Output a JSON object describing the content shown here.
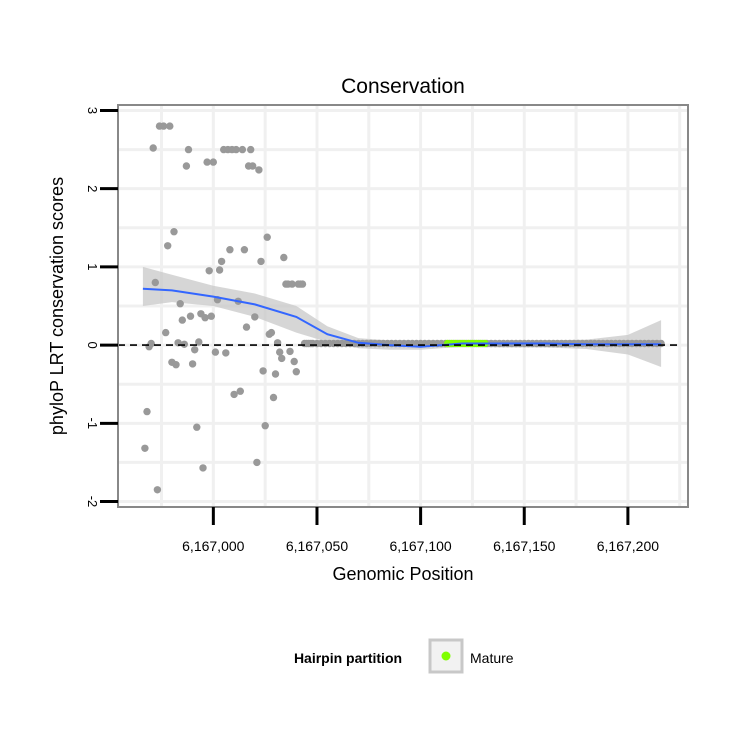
{
  "chart_data": {
    "type": "scatter",
    "title": "Conservation",
    "xlabel": "Genomic Position",
    "ylabel": "phyloP LRT conservation scores",
    "xlim": [
      6166954,
      6167229
    ],
    "ylim": [
      -2.07,
      3.07
    ],
    "x_ticks": [
      6167000,
      6167050,
      6167100,
      6167150,
      6167200
    ],
    "x_tick_labels": [
      "6,167,000",
      "6,167,050",
      "6,167,100",
      "6,167,150",
      "6,167,200"
    ],
    "y_ticks": [
      -2,
      -1,
      0,
      1,
      2,
      3
    ],
    "y_tick_labels": [
      "-2",
      "-1",
      "0",
      "1",
      "2",
      "3"
    ],
    "reference_line": {
      "y": 0,
      "style": "dashed"
    },
    "colors": {
      "points": "#999999",
      "smooth": "#3366ff",
      "ribbon": "#c8c8c8",
      "mature": "#7fff00",
      "panel_border": "#888888",
      "grid": "#f0f0f0"
    },
    "legend": {
      "title": "Hairpin partition",
      "position": "bottom",
      "entries": [
        {
          "label": "Mature",
          "color": "#7fff00"
        }
      ]
    },
    "points": [
      [
        6166967,
        -1.32
      ],
      [
        6166968,
        -0.85
      ],
      [
        6166969,
        -0.02
      ],
      [
        6166970,
        0.02
      ],
      [
        6166971,
        2.52
      ],
      [
        6166972,
        0.8
      ],
      [
        6166973,
        -1.85
      ],
      [
        6166974,
        2.8
      ],
      [
        6166976,
        2.8
      ],
      [
        6166977,
        0.16
      ],
      [
        6166978,
        1.27
      ],
      [
        6166979,
        2.8
      ],
      [
        6166980,
        -0.22
      ],
      [
        6166981,
        1.45
      ],
      [
        6166982,
        -0.25
      ],
      [
        6166983,
        0.03
      ],
      [
        6166984,
        0.53
      ],
      [
        6166985,
        0.32
      ],
      [
        6166986,
        0.01
      ],
      [
        6166987,
        2.29
      ],
      [
        6166988,
        2.5
      ],
      [
        6166989,
        0.37
      ],
      [
        6166990,
        -0.24
      ],
      [
        6166991,
        -0.06
      ],
      [
        6166992,
        -1.05
      ],
      [
        6166993,
        0.04
      ],
      [
        6166994,
        0.4
      ],
      [
        6166995,
        -1.57
      ],
      [
        6166996,
        0.35
      ],
      [
        6166997,
        2.34
      ],
      [
        6166998,
        0.95
      ],
      [
        6166999,
        0.37
      ],
      [
        6167000,
        2.34
      ],
      [
        6167001,
        -0.09
      ],
      [
        6167002,
        0.58
      ],
      [
        6167003,
        0.96
      ],
      [
        6167004,
        1.07
      ],
      [
        6167005,
        2.5
      ],
      [
        6167006,
        -0.1
      ],
      [
        6167007,
        2.5
      ],
      [
        6167008,
        1.22
      ],
      [
        6167009,
        2.5
      ],
      [
        6167010,
        -0.63
      ],
      [
        6167011,
        2.5
      ],
      [
        6167012,
        0.56
      ],
      [
        6167013,
        -0.59
      ],
      [
        6167014,
        2.5
      ],
      [
        6167015,
        1.22
      ],
      [
        6167016,
        0.23
      ],
      [
        6167017,
        2.29
      ],
      [
        6167018,
        2.5
      ],
      [
        6167019,
        2.29
      ],
      [
        6167020,
        0.36
      ],
      [
        6167021,
        -1.5
      ],
      [
        6167022,
        2.24
      ],
      [
        6167023,
        1.07
      ],
      [
        6167024,
        -0.33
      ],
      [
        6167025,
        -1.03
      ],
      [
        6167026,
        1.38
      ],
      [
        6167027,
        0.14
      ],
      [
        6167028,
        0.16
      ],
      [
        6167029,
        -0.67
      ],
      [
        6167030,
        -0.37
      ],
      [
        6167031,
        0.03
      ],
      [
        6167032,
        -0.09
      ],
      [
        6167033,
        -0.17
      ],
      [
        6167034,
        1.12
      ],
      [
        6167035,
        0.78
      ],
      [
        6167036,
        0.78
      ],
      [
        6167037,
        -0.08
      ],
      [
        6167038,
        0.78
      ],
      [
        6167039,
        -0.21
      ],
      [
        6167040,
        -0.34
      ],
      [
        6167041,
        0.78
      ],
      [
        6167042,
        0.78
      ],
      [
        6167043,
        0.78
      ],
      [
        6167044,
        0.02
      ],
      [
        6167045,
        0.02
      ],
      [
        6167046,
        0.02
      ],
      [
        6167047,
        0.02
      ],
      [
        6167048,
        0.02
      ],
      [
        6167050,
        0.02
      ],
      [
        6167052,
        0.02
      ],
      [
        6167054,
        0.02
      ],
      [
        6167056,
        0.02
      ],
      [
        6167058,
        0.02
      ],
      [
        6167060,
        0.02
      ],
      [
        6167062,
        0.02
      ],
      [
        6167064,
        0.02
      ],
      [
        6167066,
        0.02
      ],
      [
        6167068,
        0.02
      ],
      [
        6167070,
        0.02
      ],
      [
        6167072,
        0.02
      ],
      [
        6167074,
        0.02
      ],
      [
        6167076,
        0.02
      ],
      [
        6167078,
        0.02
      ],
      [
        6167080,
        0.02
      ],
      [
        6167082,
        0.02
      ],
      [
        6167084,
        0.02
      ],
      [
        6167086,
        0.02
      ],
      [
        6167088,
        0.02
      ],
      [
        6167090,
        0.02
      ],
      [
        6167092,
        0.02
      ],
      [
        6167094,
        0.02
      ],
      [
        6167096,
        0.02
      ],
      [
        6167098,
        0.02
      ],
      [
        6167100,
        0.02
      ],
      [
        6167102,
        0.02
      ],
      [
        6167104,
        0.02
      ],
      [
        6167106,
        0.02
      ],
      [
        6167108,
        0.02
      ],
      [
        6167110,
        0.02
      ],
      [
        6167112,
        0.02
      ],
      [
        6167114,
        0.02
      ],
      [
        6167116,
        0.02
      ],
      [
        6167118,
        0.02
      ],
      [
        6167120,
        0.02
      ],
      [
        6167122,
        0.02
      ],
      [
        6167124,
        0.02
      ],
      [
        6167126,
        0.02
      ],
      [
        6167128,
        0.02
      ],
      [
        6167130,
        0.02
      ],
      [
        6167132,
        0.02
      ],
      [
        6167134,
        0.02
      ],
      [
        6167136,
        0.02
      ],
      [
        6167138,
        0.02
      ],
      [
        6167140,
        0.02
      ],
      [
        6167142,
        0.02
      ],
      [
        6167144,
        0.02
      ],
      [
        6167146,
        0.02
      ],
      [
        6167148,
        0.02
      ],
      [
        6167150,
        0.02
      ],
      [
        6167152,
        0.02
      ],
      [
        6167154,
        0.02
      ],
      [
        6167156,
        0.02
      ],
      [
        6167158,
        0.02
      ],
      [
        6167160,
        0.02
      ],
      [
        6167162,
        0.02
      ],
      [
        6167164,
        0.02
      ],
      [
        6167166,
        0.02
      ],
      [
        6167168,
        0.02
      ],
      [
        6167170,
        0.02
      ],
      [
        6167172,
        0.02
      ],
      [
        6167174,
        0.02
      ],
      [
        6167176,
        0.02
      ],
      [
        6167178,
        0.02
      ],
      [
        6167180,
        0.02
      ],
      [
        6167182,
        0.02
      ],
      [
        6167184,
        0.02
      ],
      [
        6167186,
        0.02
      ],
      [
        6167188,
        0.02
      ],
      [
        6167190,
        0.02
      ],
      [
        6167192,
        0.02
      ],
      [
        6167194,
        0.02
      ],
      [
        6167196,
        0.02
      ],
      [
        6167198,
        0.02
      ],
      [
        6167200,
        0.02
      ],
      [
        6167202,
        0.02
      ],
      [
        6167204,
        0.02
      ],
      [
        6167206,
        0.02
      ],
      [
        6167208,
        0.02
      ],
      [
        6167210,
        0.02
      ],
      [
        6167212,
        0.02
      ],
      [
        6167214,
        0.02
      ],
      [
        6167216,
        0.02
      ]
    ],
    "mature_points": [
      [
        6167113,
        0.02
      ],
      [
        6167115,
        0.02
      ],
      [
        6167117,
        0.02
      ],
      [
        6167119,
        0.02
      ],
      [
        6167121,
        0.02
      ],
      [
        6167123,
        0.02
      ],
      [
        6167125,
        0.02
      ],
      [
        6167127,
        0.02
      ],
      [
        6167129,
        0.02
      ],
      [
        6167131,
        0.02
      ]
    ],
    "smooth": {
      "x": [
        6166966,
        6166980,
        6167000,
        6167020,
        6167040,
        6167055,
        6167070,
        6167085,
        6167100,
        6167120,
        6167140,
        6167160,
        6167180,
        6167200,
        6167216
      ],
      "y": [
        0.72,
        0.7,
        0.62,
        0.52,
        0.36,
        0.14,
        0.03,
        0.0,
        -0.02,
        0.02,
        0.02,
        0.02,
        0.01,
        0.01,
        0.01
      ],
      "lower": [
        0.5,
        0.55,
        0.5,
        0.36,
        0.16,
        0.04,
        -0.04,
        -0.06,
        -0.06,
        -0.02,
        -0.03,
        -0.03,
        -0.05,
        -0.12,
        -0.28
      ],
      "upper": [
        1.0,
        0.9,
        0.76,
        0.66,
        0.5,
        0.24,
        0.09,
        0.06,
        0.04,
        0.06,
        0.06,
        0.06,
        0.07,
        0.13,
        0.32
      ]
    }
  }
}
